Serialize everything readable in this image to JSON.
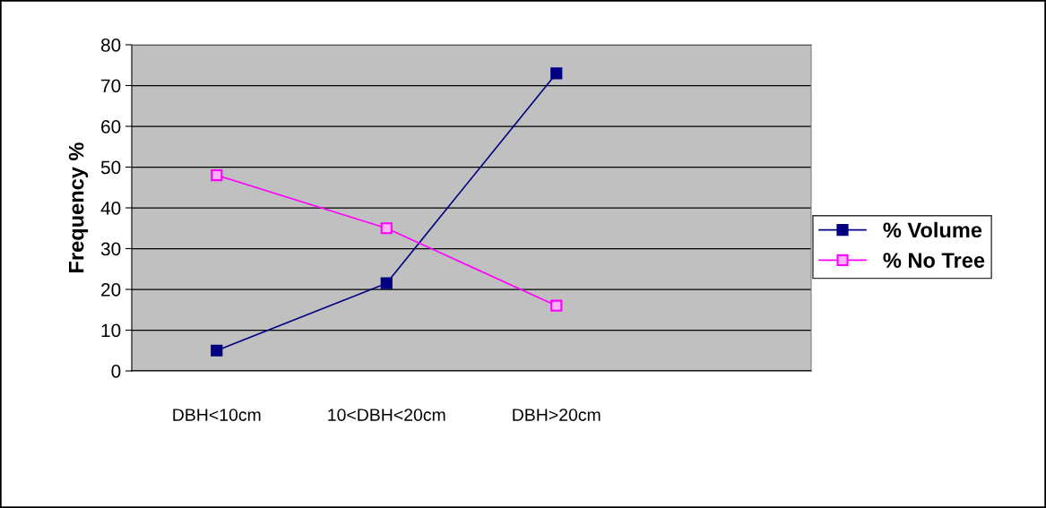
{
  "chart_data": {
    "type": "line",
    "ylabel": "Frequency %",
    "categories": [
      "DBH<10cm",
      "10<DBH<20cm",
      "DBH>20cm",
      null
    ],
    "series": [
      {
        "name": "% Volume",
        "color": "#000080",
        "values": [
          5,
          21.5,
          73,
          null
        ]
      },
      {
        "name": "% No Tree",
        "color": "#ff00ff",
        "values": [
          48,
          35,
          16,
          null
        ]
      }
    ],
    "ylim": [
      0,
      80
    ],
    "yticks": [
      0,
      10,
      20,
      30,
      40,
      50,
      60,
      70,
      80
    ],
    "grid": "y",
    "legend": "right",
    "marker": "square",
    "line_style": "solid"
  }
}
